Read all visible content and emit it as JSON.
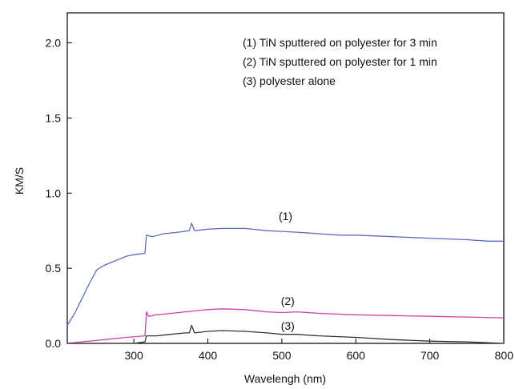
{
  "chart_data": {
    "type": "line",
    "xlabel": "Wavelengh (nm)",
    "ylabel": "KM/S",
    "xlim": [
      210,
      800
    ],
    "ylim": [
      0,
      2.2
    ],
    "xticks": [
      {
        "value": 300,
        "label": "300"
      },
      {
        "value": 400,
        "label": "400"
      },
      {
        "value": 500,
        "label": "500"
      },
      {
        "value": 600,
        "label": "600"
      },
      {
        "value": 700,
        "label": "700"
      },
      {
        "value": 800,
        "label": "800"
      }
    ],
    "yticks": [
      {
        "value": 0.0,
        "label": "0.0"
      },
      {
        "value": 0.5,
        "label": "0.5"
      },
      {
        "value": 1.0,
        "label": "1.0"
      },
      {
        "value": 1.5,
        "label": "1.5"
      },
      {
        "value": 2.0,
        "label": "2.0"
      }
    ],
    "legend": {
      "position": "top-right",
      "entries": [
        "(1) TiN sputtered on polyester for 3 min",
        "(2) TiN sputtered on polyester for 1 min",
        "(3) polyester alone"
      ]
    },
    "series": [
      {
        "label": "(1)",
        "color": "#5b6cc4",
        "label_at": [
          505,
          0.82
        ],
        "points": [
          [
            210,
            0.12
          ],
          [
            220,
            0.2
          ],
          [
            230,
            0.3
          ],
          [
            240,
            0.4
          ],
          [
            250,
            0.49
          ],
          [
            260,
            0.52
          ],
          [
            270,
            0.54
          ],
          [
            280,
            0.56
          ],
          [
            290,
            0.58
          ],
          [
            300,
            0.59
          ],
          [
            315,
            0.6
          ],
          [
            317,
            0.72
          ],
          [
            325,
            0.71
          ],
          [
            340,
            0.73
          ],
          [
            360,
            0.74
          ],
          [
            375,
            0.75
          ],
          [
            378,
            0.8
          ],
          [
            382,
            0.75
          ],
          [
            400,
            0.76
          ],
          [
            420,
            0.765
          ],
          [
            450,
            0.765
          ],
          [
            480,
            0.75
          ],
          [
            500,
            0.745
          ],
          [
            520,
            0.74
          ],
          [
            550,
            0.73
          ],
          [
            580,
            0.72
          ],
          [
            600,
            0.72
          ],
          [
            650,
            0.71
          ],
          [
            700,
            0.7
          ],
          [
            750,
            0.69
          ],
          [
            780,
            0.68
          ],
          [
            800,
            0.68
          ]
        ]
      },
      {
        "label": "(2)",
        "color": "#d040a8",
        "label_at": [
          508,
          0.255
        ],
        "points": [
          [
            210,
            0.0
          ],
          [
            230,
            0.01
          ],
          [
            260,
            0.025
          ],
          [
            290,
            0.04
          ],
          [
            315,
            0.05
          ],
          [
            317,
            0.21
          ],
          [
            320,
            0.18
          ],
          [
            330,
            0.19
          ],
          [
            350,
            0.2
          ],
          [
            380,
            0.215
          ],
          [
            400,
            0.225
          ],
          [
            420,
            0.23
          ],
          [
            450,
            0.225
          ],
          [
            480,
            0.21
          ],
          [
            500,
            0.205
          ],
          [
            520,
            0.21
          ],
          [
            550,
            0.2
          ],
          [
            600,
            0.19
          ],
          [
            650,
            0.185
          ],
          [
            700,
            0.18
          ],
          [
            750,
            0.175
          ],
          [
            800,
            0.17
          ]
        ]
      },
      {
        "label": "(3)",
        "color": "#333333",
        "label_at": [
          508,
          0.09
        ],
        "points": [
          [
            210,
            0.0
          ],
          [
            260,
            0.0
          ],
          [
            300,
            0.0
          ],
          [
            315,
            0.01
          ],
          [
            317,
            0.05
          ],
          [
            330,
            0.05
          ],
          [
            350,
            0.06
          ],
          [
            370,
            0.07
          ],
          [
            375,
            0.07
          ],
          [
            378,
            0.12
          ],
          [
            382,
            0.07
          ],
          [
            400,
            0.08
          ],
          [
            420,
            0.085
          ],
          [
            450,
            0.08
          ],
          [
            480,
            0.07
          ],
          [
            500,
            0.06
          ],
          [
            520,
            0.06
          ],
          [
            550,
            0.05
          ],
          [
            600,
            0.04
          ],
          [
            650,
            0.025
          ],
          [
            700,
            0.015
          ],
          [
            750,
            0.01
          ],
          [
            800,
            0.0
          ]
        ]
      }
    ]
  }
}
